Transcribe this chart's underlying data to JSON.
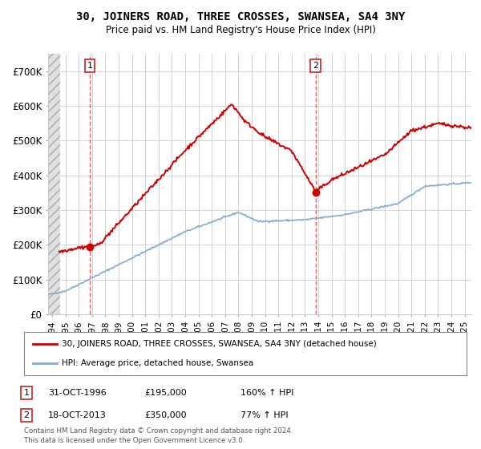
{
  "title": "30, JOINERS ROAD, THREE CROSSES, SWANSEA, SA4 3NY",
  "subtitle": "Price paid vs. HM Land Registry's House Price Index (HPI)",
  "ylim": [
    0,
    750000
  ],
  "yticks": [
    0,
    100000,
    200000,
    300000,
    400000,
    500000,
    600000,
    700000
  ],
  "ytick_labels": [
    "£0",
    "£100K",
    "£200K",
    "£300K",
    "£400K",
    "£500K",
    "£600K",
    "£700K"
  ],
  "marker1": {
    "date_x": 1996.83,
    "y": 195000,
    "label": "1",
    "date_str": "31-OCT-1996",
    "price": "£195,000",
    "hpi": "160% ↑ HPI"
  },
  "marker2": {
    "date_x": 2013.79,
    "y": 350000,
    "label": "2",
    "date_str": "18-OCT-2013",
    "price": "£350,000",
    "hpi": "77% ↑ HPI"
  },
  "legend_entry1": "30, JOINERS ROAD, THREE CROSSES, SWANSEA, SA4 3NY (detached house)",
  "legend_entry2": "HPI: Average price, detached house, Swansea",
  "footnote1": "Contains HM Land Registry data © Crown copyright and database right 2024.",
  "footnote2": "This data is licensed under the Open Government Licence v3.0.",
  "line_color_red": "#cc0000",
  "line_color_blue": "#88aacc",
  "grid_color": "#cccccc",
  "marker_color": "#cc0000",
  "vline_color": "#dd4444",
  "x_start": 1993.7,
  "x_end": 2025.5,
  "x_ticks_start": 1994,
  "x_ticks_end": 2025
}
